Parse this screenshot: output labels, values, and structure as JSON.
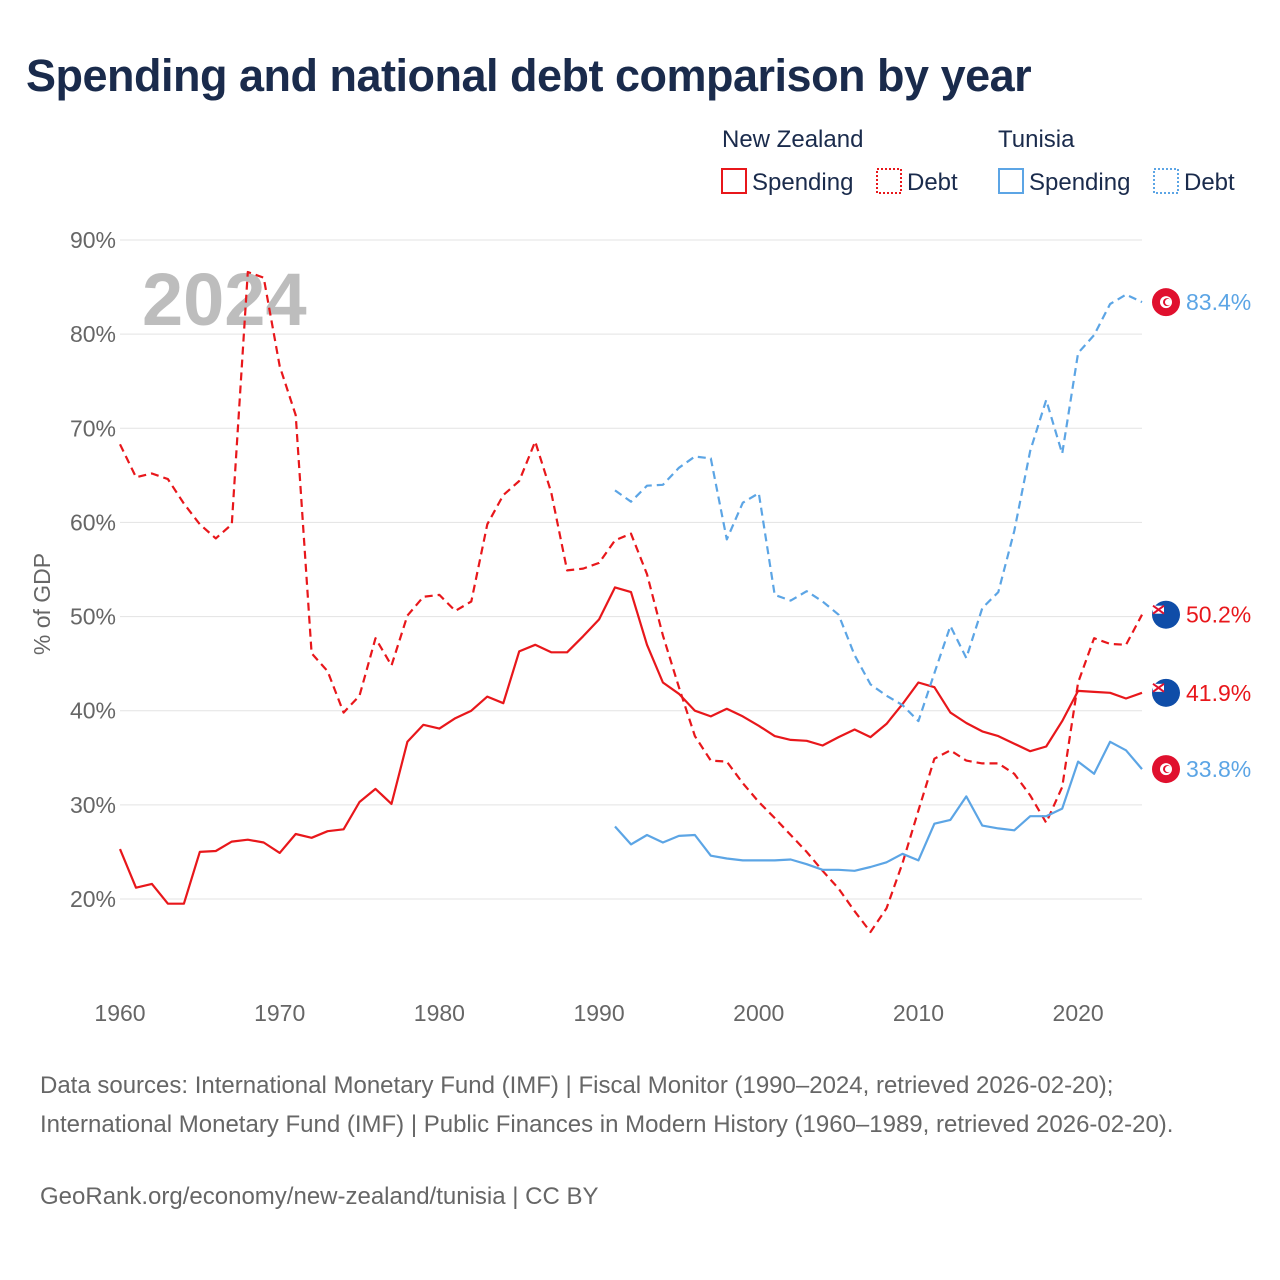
{
  "title": "Spending and national debt comparison by year",
  "chart_data": {
    "type": "line",
    "title": "Spending and national debt comparison by year",
    "year_label": "2024",
    "ylabel": "% of GDP",
    "xlabel": "",
    "xlim": [
      1960,
      2024
    ],
    "ylim": [
      10,
      90
    ],
    "x_ticks": [
      "1960",
      "1970",
      "1980",
      "1990",
      "2000",
      "2010",
      "2020"
    ],
    "y_ticks": [
      "20%",
      "30%",
      "40%",
      "50%",
      "60%",
      "70%",
      "80%",
      "90%"
    ],
    "legend": {
      "groups": [
        {
          "name": "New Zealand",
          "items": [
            "Spending",
            "Debt"
          ]
        },
        {
          "name": "Tunisia",
          "items": [
            "Spending",
            "Debt"
          ]
        }
      ]
    },
    "colors": {
      "new_zealand": "#e8171b",
      "tunisia": "#5ca5e5",
      "flag_tunisia": "#e0102e",
      "flag_nz": "#0f4da8"
    },
    "series": [
      {
        "name": "New Zealand Spending",
        "country": "New Zealand",
        "metric": "Spending",
        "style": "solid",
        "color": "#e8171b",
        "end_label": "41.9%",
        "flag": "new-zealand",
        "x": [
          1960,
          1961,
          1962,
          1963,
          1964,
          1965,
          1966,
          1967,
          1968,
          1969,
          1970,
          1971,
          1972,
          1973,
          1974,
          1975,
          1976,
          1977,
          1978,
          1979,
          1980,
          1981,
          1982,
          1983,
          1984,
          1985,
          1986,
          1987,
          1988,
          1989,
          1990,
          1991,
          1992,
          1993,
          1994,
          1995,
          1996,
          1997,
          1998,
          1999,
          2000,
          2001,
          2002,
          2003,
          2004,
          2005,
          2006,
          2007,
          2008,
          2009,
          2010,
          2011,
          2012,
          2013,
          2014,
          2015,
          2016,
          2017,
          2018,
          2019,
          2020,
          2021,
          2022,
          2023,
          2024
        ],
        "values": [
          25.3,
          21.2,
          21.6,
          19.5,
          19.5,
          25.0,
          25.1,
          26.1,
          26.3,
          26.0,
          24.9,
          26.9,
          26.5,
          27.2,
          27.4,
          30.3,
          31.7,
          30.1,
          36.7,
          38.5,
          38.1,
          39.2,
          40.0,
          41.5,
          40.8,
          46.3,
          47.0,
          46.2,
          46.2,
          47.9,
          49.7,
          53.1,
          52.6,
          47.0,
          43.0,
          41.8,
          40.0,
          39.4,
          40.2,
          39.4,
          38.4,
          37.3,
          36.9,
          36.8,
          36.3,
          37.2,
          38.0,
          37.2,
          38.6,
          40.7,
          43.0,
          42.5,
          39.8,
          38.7,
          37.8,
          37.3,
          36.5,
          35.7,
          36.2,
          38.9,
          42.1,
          42.0,
          41.9,
          41.3,
          41.9
        ]
      },
      {
        "name": "New Zealand Debt",
        "country": "New Zealand",
        "metric": "Debt",
        "style": "dashed",
        "color": "#e8171b",
        "end_label": "50.2%",
        "flag": "new-zealand",
        "x": [
          1960,
          1961,
          1962,
          1963,
          1964,
          1965,
          1966,
          1967,
          1968,
          1969,
          1970,
          1971,
          1972,
          1973,
          1974,
          1975,
          1976,
          1977,
          1978,
          1979,
          1980,
          1981,
          1982,
          1983,
          1984,
          1985,
          1986,
          1987,
          1988,
          1989,
          1990,
          1991,
          1992,
          1993,
          1994,
          1995,
          1996,
          1997,
          1998,
          1999,
          2000,
          2001,
          2002,
          2003,
          2004,
          2005,
          2006,
          2007,
          2008,
          2009,
          2010,
          2011,
          2012,
          2013,
          2014,
          2015,
          2016,
          2017,
          2018,
          2019,
          2020,
          2021,
          2022,
          2023,
          2024
        ],
        "values": [
          68.3,
          64.8,
          65.2,
          64.6,
          62.0,
          59.8,
          58.3,
          59.8,
          86.6,
          86.0,
          76.6,
          71.4,
          46.1,
          44.2,
          39.8,
          41.6,
          47.7,
          44.8,
          50.1,
          52.1,
          52.3,
          50.6,
          51.6,
          59.8,
          62.9,
          64.4,
          68.6,
          63.2,
          54.9,
          55.1,
          55.7,
          58.1,
          58.8,
          54.5,
          48.0,
          42.5,
          37.3,
          34.7,
          34.6,
          32.3,
          30.3,
          28.6,
          26.8,
          25.0,
          23.0,
          21.1,
          18.7,
          16.5,
          19.0,
          23.8,
          29.4,
          34.9,
          35.8,
          34.7,
          34.4,
          34.4,
          33.3,
          31.0,
          28.1,
          31.9,
          43.0,
          47.7,
          47.1,
          47.0,
          50.2
        ]
      },
      {
        "name": "Tunisia Spending",
        "country": "Tunisia",
        "metric": "Spending",
        "style": "solid",
        "color": "#5ca5e5",
        "end_label": "33.8%",
        "flag": "tunisia",
        "x": [
          1991,
          1992,
          1993,
          1994,
          1995,
          1996,
          1997,
          1998,
          1999,
          2000,
          2001,
          2002,
          2003,
          2004,
          2005,
          2006,
          2007,
          2008,
          2009,
          2010,
          2011,
          2012,
          2013,
          2014,
          2015,
          2016,
          2017,
          2018,
          2019,
          2020,
          2021,
          2022,
          2023,
          2024
        ],
        "values": [
          27.7,
          25.8,
          26.8,
          26.0,
          26.7,
          26.8,
          24.6,
          24.3,
          24.1,
          24.1,
          24.1,
          24.2,
          23.7,
          23.1,
          23.1,
          23.0,
          23.4,
          23.9,
          24.8,
          24.1,
          28.0,
          28.4,
          30.9,
          27.8,
          27.5,
          27.3,
          28.8,
          28.8,
          29.6,
          34.6,
          33.3,
          36.7,
          35.8,
          33.8
        ]
      },
      {
        "name": "Tunisia Debt",
        "country": "Tunisia",
        "metric": "Debt",
        "style": "dashed",
        "color": "#5ca5e5",
        "end_label": "83.4%",
        "flag": "tunisia",
        "x": [
          1991,
          1992,
          1993,
          1994,
          1995,
          1996,
          1997,
          1998,
          1999,
          2000,
          2001,
          2002,
          2003,
          2004,
          2005,
          2006,
          2007,
          2008,
          2009,
          2010,
          2011,
          2012,
          2013,
          2014,
          2015,
          2016,
          2017,
          2018,
          2019,
          2020,
          2021,
          2022,
          2023,
          2024
        ],
        "values": [
          63.4,
          62.2,
          63.9,
          64.0,
          65.8,
          67.0,
          66.8,
          58.2,
          62.1,
          63.1,
          52.3,
          51.7,
          52.7,
          51.6,
          50.2,
          45.9,
          42.8,
          41.6,
          40.6,
          38.9,
          44.0,
          49.0,
          45.6,
          50.9,
          52.6,
          59.1,
          67.6,
          73.0,
          67.3,
          78.0,
          79.9,
          83.2,
          84.2,
          83.4
        ]
      }
    ]
  },
  "sources": "Data sources: International Monetary Fund (IMF) | Fiscal Monitor (1990–2024, retrieved 2026-02-20); International Monetary Fund (IMF) | Public Finances in Modern History (1960–1989, retrieved 2026-02-20).",
  "credit": "GeoRank.org/economy/new-zealand/tunisia | CC BY"
}
